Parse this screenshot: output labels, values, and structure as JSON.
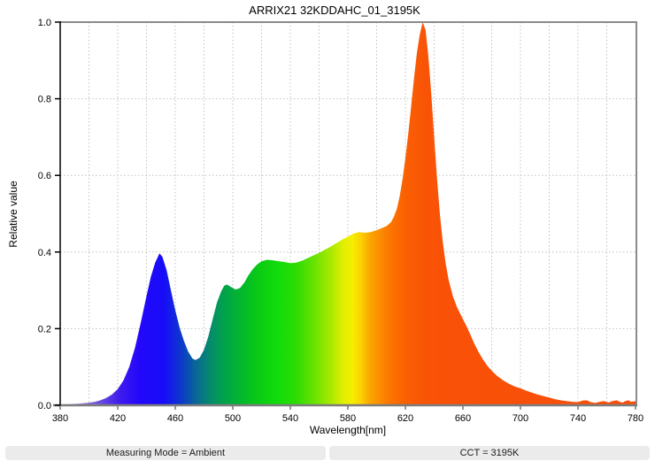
{
  "title": "ARRIX21 32KDDAHC_01_3195K",
  "footer": {
    "measuring_mode": "Measuring Mode = Ambient",
    "cct": "CCT = 3195K"
  },
  "colors": {
    "background": "#ffffff",
    "frame": "#8a8a8a",
    "bottom_axis": "#7d7d7d",
    "left_axis": "#000000",
    "grid": "#c2c2c2",
    "tick": "#333333",
    "text": "#000000",
    "chip_bg": "#ebebeb",
    "chip_text": "#1b1b1b"
  },
  "chart_data": {
    "type": "area",
    "title": "ARRIX21 32KDDAHC_01_3195K",
    "xlabel": "Wavelength[nm]",
    "ylabel": "Relative value",
    "xlim": [
      380,
      780
    ],
    "ylim": [
      0.0,
      1.0
    ],
    "x_major_ticks": [
      380,
      420,
      460,
      500,
      540,
      580,
      620,
      660,
      700,
      740,
      780
    ],
    "x_grid_step": 20,
    "y_ticks": [
      0.0,
      0.2,
      0.4,
      0.6,
      0.8,
      1.0
    ],
    "y_tick_labels": [
      "0.0",
      "0.2",
      "0.4",
      "0.6",
      "0.8",
      "1.0"
    ],
    "grid": "dashed",
    "legend": "none",
    "peaks": [
      {
        "wavelength": 449,
        "value": 0.396
      },
      {
        "wavelength": 632,
        "value": 1.0
      }
    ],
    "series": [
      {
        "name": "spectral-power-distribution",
        "points": [
          [
            380,
            0.002
          ],
          [
            386,
            0.003
          ],
          [
            392,
            0.004
          ],
          [
            398,
            0.006
          ],
          [
            404,
            0.009
          ],
          [
            408,
            0.013
          ],
          [
            412,
            0.019
          ],
          [
            416,
            0.028
          ],
          [
            420,
            0.042
          ],
          [
            424,
            0.065
          ],
          [
            428,
            0.1
          ],
          [
            432,
            0.15
          ],
          [
            436,
            0.215
          ],
          [
            440,
            0.285
          ],
          [
            443,
            0.335
          ],
          [
            446,
            0.372
          ],
          [
            449,
            0.396
          ],
          [
            451,
            0.388
          ],
          [
            454,
            0.352
          ],
          [
            457,
            0.3
          ],
          [
            460,
            0.248
          ],
          [
            463,
            0.203
          ],
          [
            466,
            0.168
          ],
          [
            469,
            0.14
          ],
          [
            472,
            0.122
          ],
          [
            474,
            0.118
          ],
          [
            477,
            0.124
          ],
          [
            480,
            0.145
          ],
          [
            483,
            0.18
          ],
          [
            486,
            0.225
          ],
          [
            489,
            0.268
          ],
          [
            492,
            0.298
          ],
          [
            494,
            0.312
          ],
          [
            496,
            0.315
          ],
          [
            499,
            0.308
          ],
          [
            502,
            0.302
          ],
          [
            505,
            0.306
          ],
          [
            508,
            0.32
          ],
          [
            511,
            0.34
          ],
          [
            514,
            0.356
          ],
          [
            517,
            0.368
          ],
          [
            520,
            0.376
          ],
          [
            524,
            0.38
          ],
          [
            528,
            0.378
          ],
          [
            532,
            0.376
          ],
          [
            536,
            0.374
          ],
          [
            540,
            0.371
          ],
          [
            544,
            0.372
          ],
          [
            548,
            0.377
          ],
          [
            552,
            0.384
          ],
          [
            556,
            0.391
          ],
          [
            560,
            0.398
          ],
          [
            564,
            0.406
          ],
          [
            568,
            0.414
          ],
          [
            572,
            0.423
          ],
          [
            576,
            0.432
          ],
          [
            580,
            0.44
          ],
          [
            584,
            0.448
          ],
          [
            588,
            0.452
          ],
          [
            592,
            0.45
          ],
          [
            596,
            0.452
          ],
          [
            600,
            0.457
          ],
          [
            604,
            0.463
          ],
          [
            607,
            0.468
          ],
          [
            610,
            0.478
          ],
          [
            612,
            0.492
          ],
          [
            614,
            0.512
          ],
          [
            616,
            0.545
          ],
          [
            618,
            0.59
          ],
          [
            620,
            0.645
          ],
          [
            622,
            0.71
          ],
          [
            624,
            0.78
          ],
          [
            626,
            0.855
          ],
          [
            628,
            0.92
          ],
          [
            630,
            0.968
          ],
          [
            632,
            1.0
          ],
          [
            634,
            0.98
          ],
          [
            636,
            0.91
          ],
          [
            638,
            0.81
          ],
          [
            640,
            0.7
          ],
          [
            642,
            0.59
          ],
          [
            644,
            0.498
          ],
          [
            646,
            0.425
          ],
          [
            648,
            0.37
          ],
          [
            650,
            0.328
          ],
          [
            653,
            0.285
          ],
          [
            656,
            0.255
          ],
          [
            659,
            0.232
          ],
          [
            662,
            0.21
          ],
          [
            665,
            0.186
          ],
          [
            668,
            0.16
          ],
          [
            671,
            0.138
          ],
          [
            674,
            0.119
          ],
          [
            677,
            0.103
          ],
          [
            680,
            0.09
          ],
          [
            684,
            0.076
          ],
          [
            688,
            0.065
          ],
          [
            692,
            0.056
          ],
          [
            696,
            0.049
          ],
          [
            700,
            0.044
          ],
          [
            704,
            0.038
          ],
          [
            708,
            0.033
          ],
          [
            712,
            0.028
          ],
          [
            716,
            0.024
          ],
          [
            720,
            0.02
          ],
          [
            724,
            0.016
          ],
          [
            728,
            0.013
          ],
          [
            732,
            0.011
          ],
          [
            736,
            0.009
          ],
          [
            740,
            0.008
          ],
          [
            743,
            0.012
          ],
          [
            746,
            0.013
          ],
          [
            749,
            0.008
          ],
          [
            752,
            0.006
          ],
          [
            755,
            0.009
          ],
          [
            758,
            0.011
          ],
          [
            761,
            0.007
          ],
          [
            764,
            0.011
          ],
          [
            767,
            0.013
          ],
          [
            769,
            0.009
          ],
          [
            771,
            0.007
          ],
          [
            773,
            0.011
          ],
          [
            775,
            0.013
          ],
          [
            777,
            0.009
          ],
          [
            780,
            0.011
          ]
        ]
      }
    ],
    "fill": "wavelength-rainbow-gradient",
    "gradient_stops": [
      [
        380,
        "#c6b6ea"
      ],
      [
        398,
        "#9274da"
      ],
      [
        410,
        "#6244e2"
      ],
      [
        422,
        "#3c1aee"
      ],
      [
        435,
        "#2408fa"
      ],
      [
        452,
        "#170cf8"
      ],
      [
        464,
        "#0d38cc"
      ],
      [
        476,
        "#086e8e"
      ],
      [
        487,
        "#049362"
      ],
      [
        497,
        "#01a841"
      ],
      [
        508,
        "#03bb28"
      ],
      [
        520,
        "#0ccd12"
      ],
      [
        532,
        "#12dd0a"
      ],
      [
        544,
        "#2edb04"
      ],
      [
        556,
        "#66e200"
      ],
      [
        568,
        "#a8e900"
      ],
      [
        577,
        "#e2ef00"
      ],
      [
        583,
        "#f6ee00"
      ],
      [
        589,
        "#fbd200"
      ],
      [
        595,
        "#fba800"
      ],
      [
        602,
        "#fb8d00"
      ],
      [
        610,
        "#fb7400"
      ],
      [
        620,
        "#fa6002"
      ],
      [
        632,
        "#f95506"
      ],
      [
        650,
        "#f95108"
      ],
      [
        780,
        "#f94f0a"
      ]
    ]
  }
}
